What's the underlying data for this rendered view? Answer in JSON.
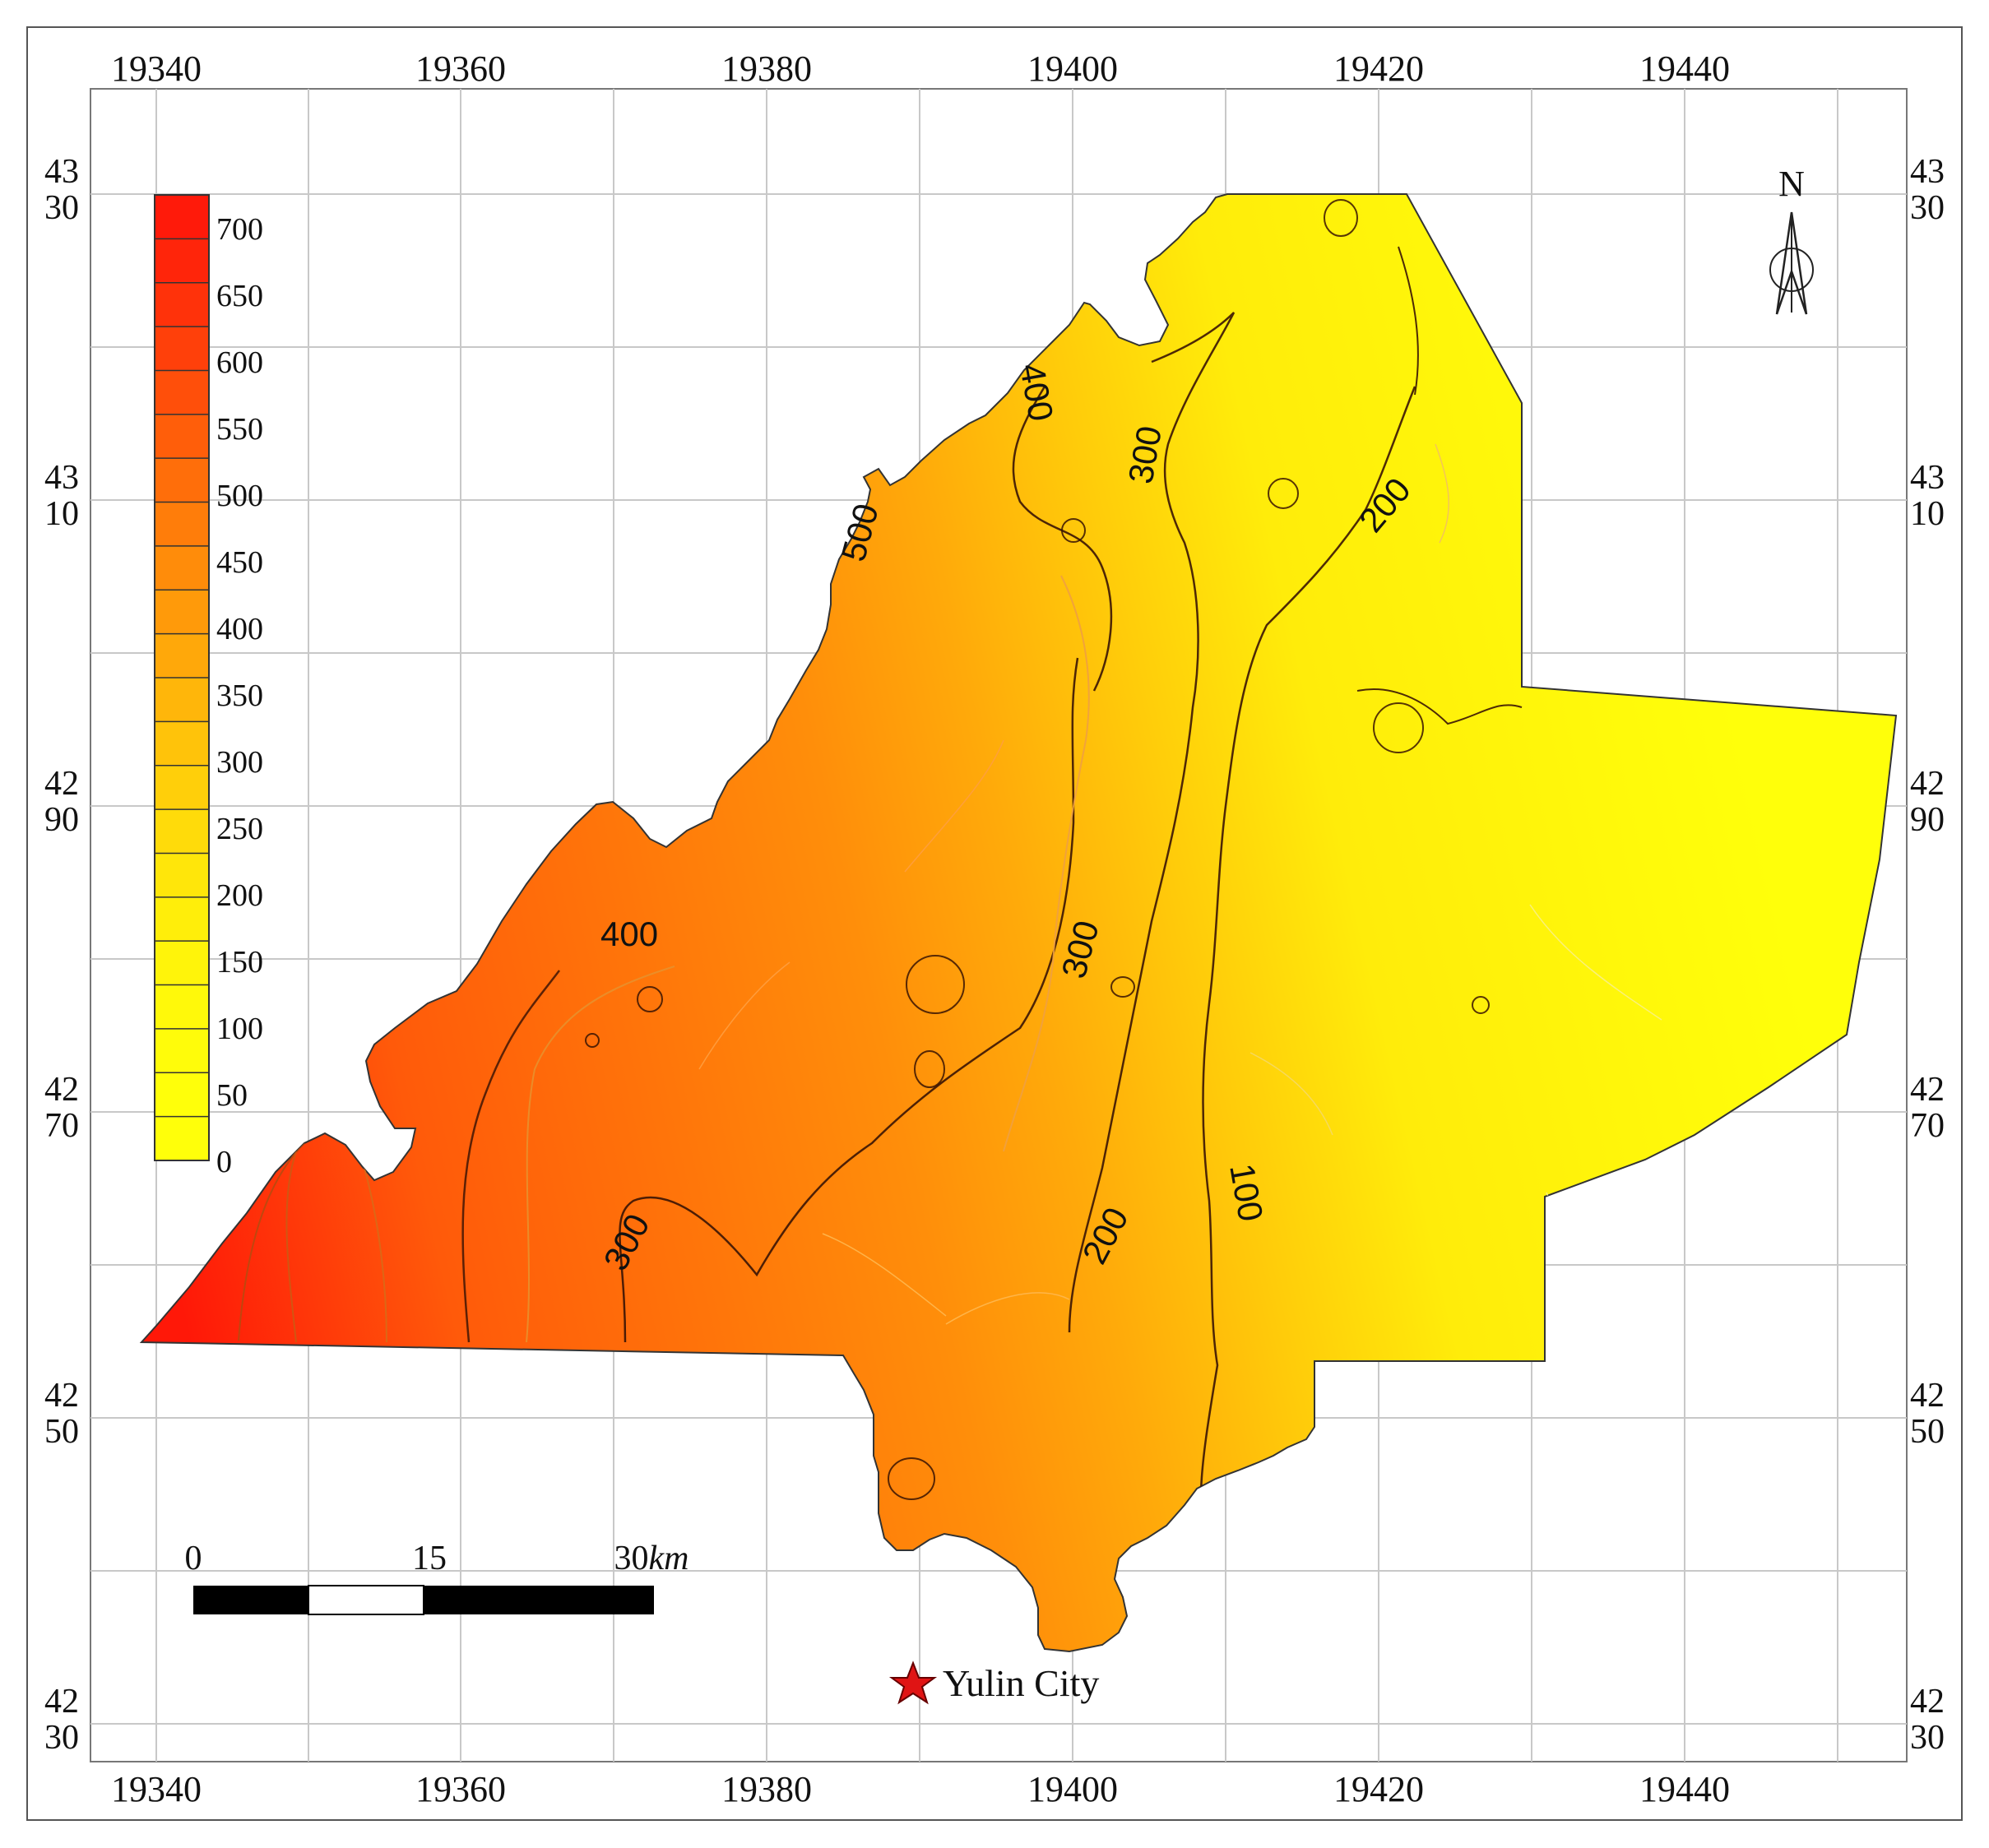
{
  "x_ticks": [
    "19340",
    "19360",
    "19380",
    "19400",
    "19420",
    "19440"
  ],
  "y_ticks": [
    {
      "top": "43",
      "bottom": "30"
    },
    {
      "top": "43",
      "bottom": "10"
    },
    {
      "top": "42",
      "bottom": "90"
    },
    {
      "top": "42",
      "bottom": "70"
    },
    {
      "top": "42",
      "bottom": "50"
    },
    {
      "top": "42",
      "bottom": "30"
    }
  ],
  "legend": {
    "labels": [
      "700",
      "650",
      "600",
      "550",
      "500",
      "450",
      "400",
      "350",
      "300",
      "250",
      "200",
      "150",
      "100",
      "50",
      "0"
    ],
    "colors": [
      "#ff1a0a",
      "#ff250a",
      "#ff320a",
      "#ff400a",
      "#ff4f0a",
      "#ff5e0a",
      "#ff6e0a",
      "#ff7d0a",
      "#ff8c0a",
      "#ff9a0a",
      "#ffa80a",
      "#ffb60a",
      "#ffc30a",
      "#ffcf0a",
      "#ffdb0a",
      "#ffe60a",
      "#ffee0a",
      "#fff40a",
      "#fff90a",
      "#fffc0a",
      "#ffff0a",
      "#ffff0a"
    ]
  },
  "contour_labels": [
    "500",
    "400",
    "300",
    "200",
    "400",
    "300",
    "300",
    "200",
    "100"
  ],
  "north_label": "N",
  "scale_bar": {
    "labels": [
      "0",
      "15",
      "30"
    ],
    "unit": "km"
  },
  "city": "Yulin City",
  "colors": {
    "high": "#ff1a0a",
    "low": "#ffff0a",
    "grid": "#c8c8c8",
    "star": "#e01414"
  }
}
